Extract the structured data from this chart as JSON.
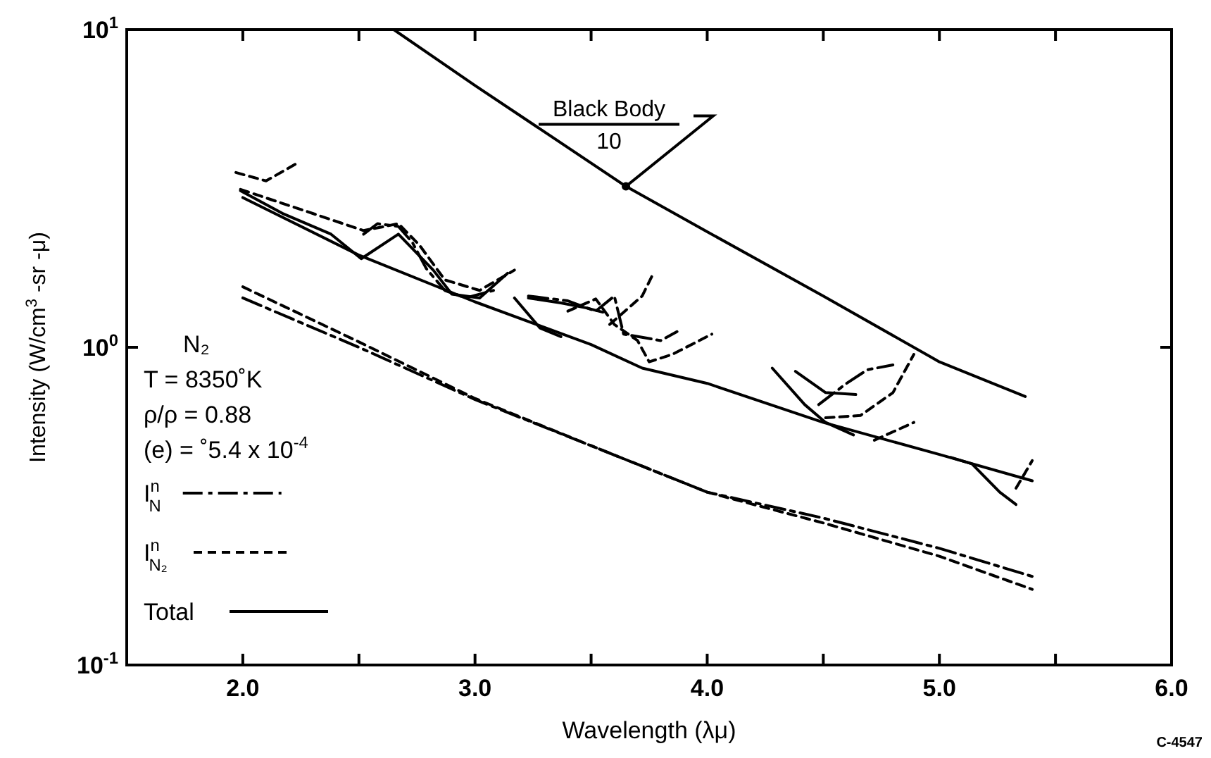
{
  "chart_data": {
    "type": "line",
    "log": "y",
    "grid": false,
    "marker": "none",
    "legend": "bottom left",
    "xlabel": "Wavelength (λμ)",
    "ylabel": "Intensity (W/cm$^{3}$ -sr -μ)",
    "xlim": [
      1.5,
      6.0
    ],
    "ylim": [
      0.1,
      10
    ],
    "xticks": [
      {
        "value": 2,
        "label": "2.0"
      },
      {
        "value": 2.5,
        "label": null
      },
      {
        "value": 3,
        "label": "3.0"
      },
      {
        "value": 3.5,
        "label": null
      },
      {
        "value": 4,
        "label": "4.0"
      },
      {
        "value": 4.5,
        "label": null
      },
      {
        "value": 5,
        "label": "5.0"
      },
      {
        "value": 5.5,
        "label": null
      },
      {
        "value": 6,
        "label": "6.0"
      }
    ],
    "yticks": [
      {
        "value": 0.1,
        "label": "10$^{-1}$"
      },
      {
        "value": 1,
        "label": "10$^{0}$"
      },
      {
        "value": 10,
        "label": "10$^{1}$"
      }
    ],
    "annotations": [
      "N₂",
      "T = 8350˚K",
      "ρ/ρ = 0.88",
      "(e) = ˚5.4 x 10$^{-4}$",
      {
        "text": "Black Body\n10",
        "x": 3.65,
        "y": 3.21
      },
      "C-4547"
    ],
    "series": [
      {
        "name": "I$^{n}$$_{N}$",
        "color": "#000000",
        "line_style": "dashdot",
        "x": [
          2.0,
          2.5,
          3.0,
          3.5,
          4.0,
          4.5,
          5.0,
          5.4
        ],
        "values": [
          1.43,
          1.0,
          0.685,
          0.49,
          0.35,
          0.29,
          0.233,
          0.19
        ]
      },
      {
        "name": "I$^{n}$$_{N₂}$",
        "color": "#000000",
        "line_style": "dashed",
        "x": [
          2.0,
          2.5,
          3.0,
          3.5,
          4.0,
          4.5,
          5.0,
          5.4
        ],
        "values": [
          1.55,
          1.04,
          0.69,
          0.49,
          0.35,
          0.28,
          0.22,
          0.173
        ]
      },
      {
        "name": "Total",
        "color": "#000000",
        "line_style": "solid",
        "x": [
          2.0,
          2.5,
          3.0,
          3.5,
          3.72,
          4.0,
          4.5,
          5.0,
          5.4
        ],
        "values": [
          2.96,
          1.95,
          1.39,
          1.02,
          0.86,
          0.77,
          0.58,
          0.46,
          0.38
        ]
      },
      {
        "color": "#000000",
        "line_style": "solid",
        "x": [
          2.65,
          3.0,
          3.65,
          4.0,
          4.5,
          5.0,
          5.37
        ],
        "values": [
          10,
          6.67,
          3.21,
          2.31,
          1.45,
          0.9,
          0.7
        ]
      },
      {
        "color": "#000000",
        "line_style": "solid",
        "x": [
          1.99,
          2.17,
          2.38,
          2.51,
          2.67,
          2.82,
          2.9,
          3.02,
          3.14
        ],
        "values": [
          3.11,
          2.64,
          2.27,
          1.9,
          2.27,
          1.75,
          1.47,
          1.43,
          1.71
        ]
      },
      {
        "color": "#000000",
        "line_style": "dashed",
        "x": [
          1.97,
          2.1,
          2.24
        ],
        "values": [
          3.55,
          3.34,
          3.82
        ]
      },
      {
        "color": "#000000",
        "line_style": "dashed",
        "x": [
          1.99,
          2.26,
          2.52,
          2.67,
          2.76,
          2.87,
          3.02,
          3.17
        ],
        "values": [
          3.14,
          2.7,
          2.33,
          2.45,
          2.1,
          1.63,
          1.51,
          1.75
        ]
      },
      {
        "color": "#000000",
        "line_style": "dashdot",
        "x": [
          2.52,
          2.58,
          2.67,
          2.73,
          2.79,
          2.87,
          2.96,
          3.08
        ],
        "values": [
          2.27,
          2.45,
          2.4,
          2.14,
          1.77,
          1.51,
          1.43,
          1.51
        ]
      },
      {
        "color": "#000000",
        "line_style": "solid",
        "x": [
          3.17,
          3.28,
          3.37
        ],
        "values": [
          1.43,
          1.15,
          1.08
        ]
      },
      {
        "color": "#000000",
        "line_style": "solid",
        "x": [
          3.23,
          3.37,
          3.48,
          3.55
        ],
        "values": [
          1.43,
          1.38,
          1.33,
          1.29
        ]
      },
      {
        "color": "#000000",
        "line_style": "dashdot",
        "x": [
          3.23,
          3.4,
          3.52,
          3.6,
          3.64,
          3.8,
          3.87
        ],
        "values": [
          1.45,
          1.4,
          1.3,
          1.45,
          1.1,
          1.05,
          1.12
        ]
      },
      {
        "color": "#000000",
        "line_style": "dashed",
        "x": [
          3.4,
          3.52,
          3.6,
          3.7,
          3.75,
          3.85,
          4.02
        ],
        "values": [
          1.3,
          1.42,
          1.18,
          1.05,
          0.9,
          0.95,
          1.1
        ]
      },
      {
        "color": "#000000",
        "line_style": "dashed",
        "x": [
          3.58,
          3.72,
          3.77
        ],
        "values": [
          1.18,
          1.45,
          1.72
        ]
      },
      {
        "color": "#000000",
        "line_style": "solid",
        "x": [
          4.28,
          4.42,
          4.51,
          4.63
        ],
        "values": [
          0.86,
          0.66,
          0.58,
          0.53
        ]
      },
      {
        "color": "#000000",
        "line_style": "solid",
        "x": [
          4.38,
          4.51,
          4.64
        ],
        "values": [
          0.84,
          0.72,
          0.71
        ]
      },
      {
        "color": "#000000",
        "line_style": "dashdot",
        "x": [
          4.48,
          4.6,
          4.69,
          4.8
        ],
        "values": [
          0.66,
          0.77,
          0.85,
          0.88
        ]
      },
      {
        "color": "#000000",
        "line_style": "dashed",
        "x": [
          4.51,
          4.66,
          4.8,
          4.89
        ],
        "values": [
          0.6,
          0.61,
          0.72,
          0.95
        ]
      },
      {
        "color": "#000000",
        "line_style": "dashed",
        "x": [
          4.72,
          4.89
        ],
        "values": [
          0.51,
          0.58
        ]
      },
      {
        "color": "#000000",
        "line_style": "solid",
        "x": [
          5.05,
          5.14,
          5.26,
          5.33
        ],
        "values": [
          0.45,
          0.43,
          0.35,
          0.32
        ]
      },
      {
        "color": "#000000",
        "line_style": "dashed",
        "x": [
          5.33,
          5.4
        ],
        "values": [
          0.36,
          0.44
        ]
      }
    ]
  }
}
